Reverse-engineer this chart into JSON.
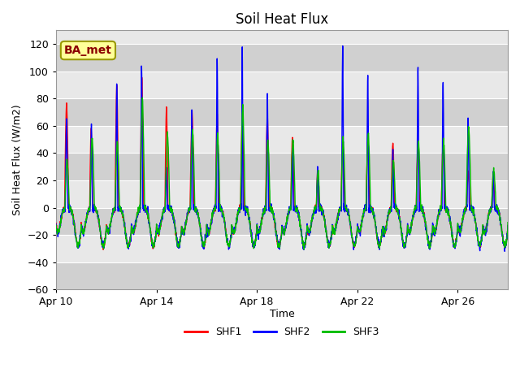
{
  "title": "Soil Heat Flux",
  "xlabel": "Time",
  "ylabel": "Soil Heat Flux (W/m2)",
  "ylim": [
    -60,
    130
  ],
  "yticks": [
    -60,
    -40,
    -20,
    0,
    20,
    40,
    60,
    80,
    100,
    120
  ],
  "xtick_labels": [
    "Apr 10",
    "Apr 14",
    "Apr 18",
    "Apr 22",
    "Apr 26"
  ],
  "xtick_positions": [
    0,
    4,
    8,
    12,
    16
  ],
  "colors": {
    "SHF1": "#ff0000",
    "SHF2": "#0000ff",
    "SHF3": "#00bb00"
  },
  "legend_label": "BA_met",
  "plot_bg_color": "#e8e8e8",
  "band_light": "#e8e8e8",
  "band_dark": "#d0d0d0",
  "title_fontsize": 12,
  "axis_fontsize": 9,
  "tick_fontsize": 9,
  "legend_fontsize": 9,
  "n_days": 18,
  "linewidth": 1.0
}
